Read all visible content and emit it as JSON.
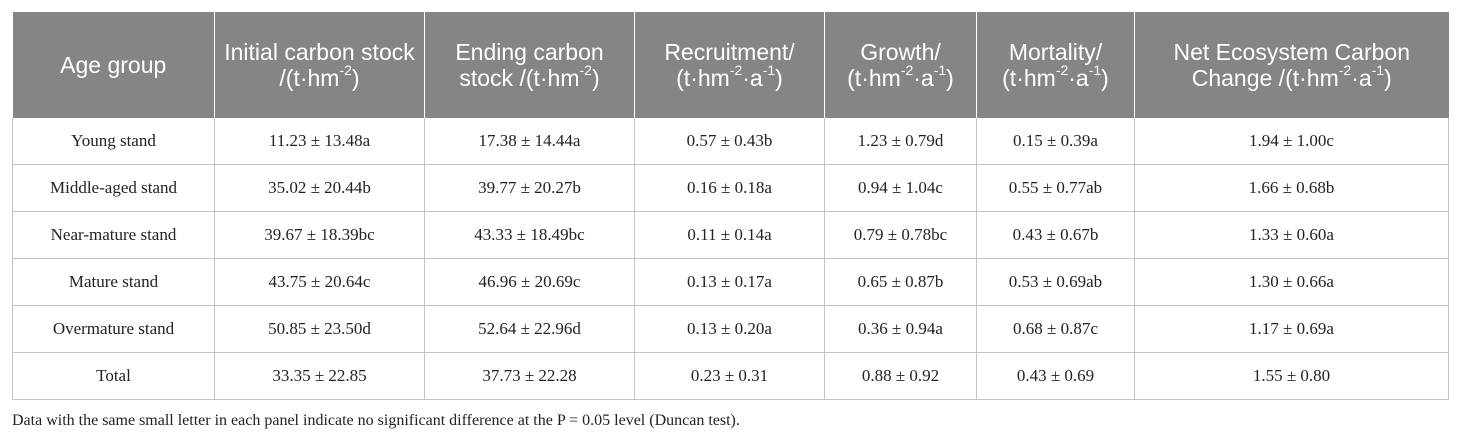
{
  "table": {
    "headers": [
      {
        "text": "Age group",
        "sup1": "",
        "mid": "",
        "sup2": "",
        "tail": ""
      },
      {
        "text": "Initial carbon stock /(t·hm",
        "sup1": "-2",
        "mid": ")",
        "sup2": "",
        "tail": ""
      },
      {
        "text": "Ending carbon stock /(t·hm",
        "sup1": "-2",
        "mid": ")",
        "sup2": "",
        "tail": ""
      },
      {
        "text": "Recruitment/ (t·hm",
        "sup1": "-2",
        "mid": "·a",
        "sup2": "-1",
        "tail": ")"
      },
      {
        "text": "Growth/ (t·hm",
        "sup1": "-2",
        "mid": "·a",
        "sup2": "-1",
        "tail": ")"
      },
      {
        "text": "Mortality/ (t·hm",
        "sup1": "-2",
        "mid": "·a",
        "sup2": "-1",
        "tail": ")"
      },
      {
        "text": "Net Ecosystem Carbon Change /(t·hm",
        "sup1": "-2",
        "mid": "·a",
        "sup2": "-1",
        "tail": ")"
      }
    ],
    "rows": [
      [
        "Young stand",
        "11.23 ± 13.48a",
        "17.38 ± 14.44a",
        "0.57 ± 0.43b",
        "1.23 ± 0.79d",
        "0.15 ± 0.39a",
        "1.94 ± 1.00c"
      ],
      [
        "Middle-aged stand",
        "35.02 ± 20.44b",
        "39.77 ± 20.27b",
        "0.16 ± 0.18a",
        "0.94 ± 1.04c",
        "0.55 ± 0.77ab",
        "1.66 ± 0.68b"
      ],
      [
        "Near-mature stand",
        "39.67 ± 18.39bc",
        "43.33 ± 18.49bc",
        "0.11 ± 0.14a",
        "0.79 ± 0.78bc",
        "0.43 ± 0.67b",
        "1.33 ± 0.60a"
      ],
      [
        "Mature stand",
        "43.75 ± 20.64c",
        "46.96 ± 20.69c",
        "0.13 ± 0.17a",
        "0.65 ± 0.87b",
        "0.53 ± 0.69ab",
        "1.30 ± 0.66a"
      ],
      [
        "Overmature stand",
        "50.85 ± 23.50d",
        "52.64 ± 22.96d",
        "0.13 ± 0.20a",
        "0.36 ± 0.94a",
        "0.68 ± 0.87c",
        "1.17 ± 0.69a"
      ],
      [
        "Total",
        "33.35 ± 22.85",
        "37.73 ± 22.28",
        "0.23 ± 0.31",
        "0.88 ± 0.92",
        "0.43 ± 0.69",
        "1.55 ± 0.80"
      ]
    ]
  },
  "footnote": "Data with the same small letter in each panel indicate no significant difference at the P = 0.05 level (Duncan test).",
  "colors": {
    "header_bg": "#858585",
    "header_text": "#ffffff",
    "grid": "#c4c4c4",
    "body_text": "#222222"
  }
}
